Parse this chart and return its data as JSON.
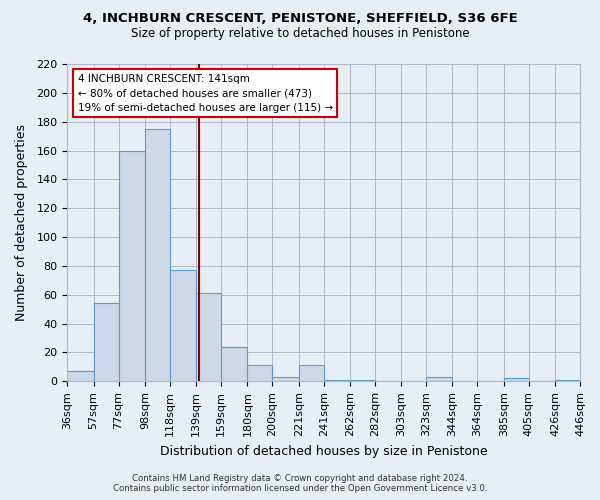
{
  "title": "4, INCHBURN CRESCENT, PENISTONE, SHEFFIELD, S36 6FE",
  "subtitle": "Size of property relative to detached houses in Penistone",
  "xlabel": "Distribution of detached houses by size in Penistone",
  "ylabel": "Number of detached properties",
  "bin_edges": [
    36,
    57,
    77,
    98,
    118,
    139,
    159,
    180,
    200,
    221,
    241,
    262,
    282,
    303,
    323,
    344,
    364,
    385,
    405,
    426,
    446
  ],
  "bin_counts": [
    7,
    54,
    160,
    175,
    77,
    61,
    24,
    11,
    3,
    11,
    1,
    1,
    0,
    0,
    3,
    0,
    0,
    2,
    0,
    1
  ],
  "bar_face_color": "#cdd9e8",
  "bar_edge_color": "#5b9bd5",
  "vline_x": 141,
  "vline_color": "#8b0000",
  "annotation_line1": "4 INCHBURN CRESCENT: 141sqm",
  "annotation_line2": "← 80% of detached houses are smaller (473)",
  "annotation_line3": "19% of semi-detached houses are larger (115) →",
  "annotation_fontsize": 7.5,
  "ylim": [
    0,
    220
  ],
  "yticks": [
    0,
    20,
    40,
    60,
    80,
    100,
    120,
    140,
    160,
    180,
    200,
    220
  ],
  "grid_color": "#b0b8c8",
  "bg_color": "#e8eef5",
  "plot_bg_color": "#e8eef5",
  "footnote1": "Contains HM Land Registry data © Crown copyright and database right 2024.",
  "footnote2": "Contains public sector information licensed under the Open Government Licence v3.0.",
  "tick_labels": [
    "36sqm",
    "57sqm",
    "77sqm",
    "98sqm",
    "118sqm",
    "139sqm",
    "159sqm",
    "180sqm",
    "200sqm",
    "221sqm",
    "241sqm",
    "262sqm",
    "282sqm",
    "303sqm",
    "323sqm",
    "344sqm",
    "364sqm",
    "385sqm",
    "405sqm",
    "426sqm",
    "446sqm"
  ]
}
